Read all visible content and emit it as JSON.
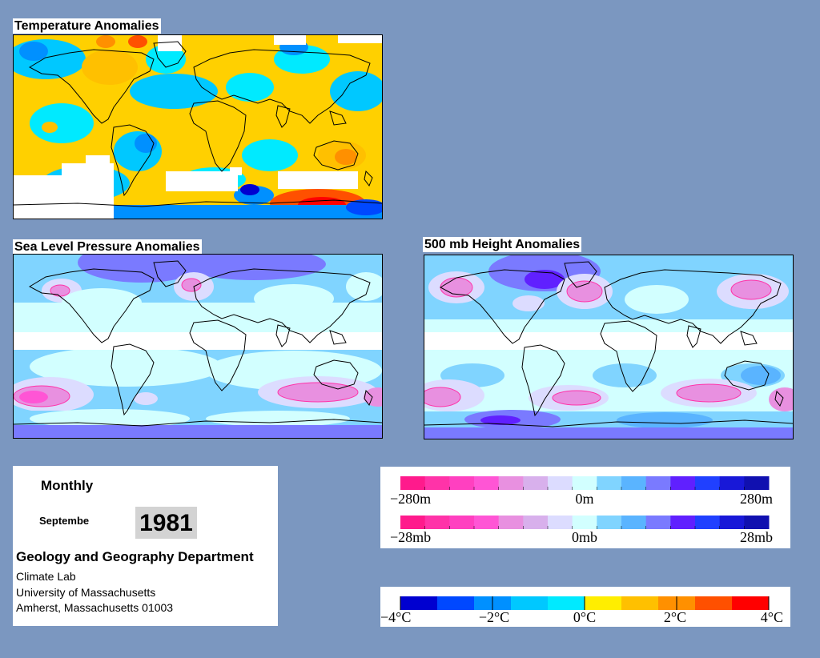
{
  "maps": {
    "temperature": {
      "title": "Temperature Anomalies"
    },
    "slp": {
      "title": "Sea Level Pressure Anomalies"
    },
    "height500": {
      "title": "500 mb Height Anomalies"
    }
  },
  "info": {
    "period": "Monthly",
    "month": "Septembe",
    "year": "1981",
    "department": "Geology and Geography Department",
    "lab": "Climate Lab",
    "university": "University of Massachusetts",
    "address": "Amherst, Massachusetts 01003"
  },
  "legends": {
    "height": {
      "labels": [
        "−280m",
        "0m",
        "280m"
      ]
    },
    "pressure": {
      "labels": [
        "−28mb",
        "0mb",
        "28mb"
      ]
    },
    "temperature": {
      "labels": [
        "−4°C",
        "−2°C",
        "0°C",
        "2°C",
        "4°C"
      ]
    }
  },
  "colors": {
    "anomaly_scale": [
      "#ff1a8c",
      "#ff33a8",
      "#ff40c0",
      "#ff55d5",
      "#e890e0",
      "#d8b0ec",
      "#dcdcff",
      "#d2ffff",
      "#80d4ff",
      "#5ab4ff",
      "#7a7aff",
      "#6020ff",
      "#2040ff",
      "#1818d8",
      "#1010b0"
    ],
    "temperature_scale": [
      "#0000d0",
      "#0048ff",
      "#0090ff",
      "#00c8ff",
      "#00eaff",
      "#ffee00",
      "#ffc000",
      "#ff9000",
      "#ff5000",
      "#ff0000"
    ],
    "background": "#7b97c0"
  }
}
